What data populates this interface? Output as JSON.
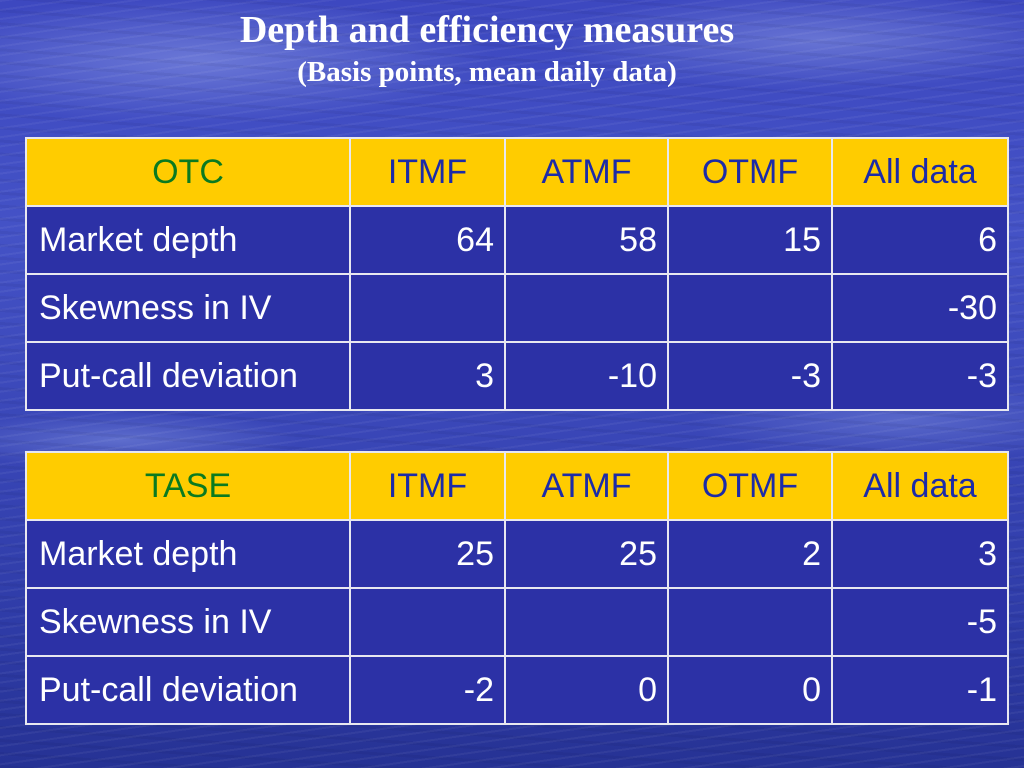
{
  "header": {
    "title": "Depth and efficiency measures",
    "subtitle": "(Basis points, mean daily data)"
  },
  "tables": [
    {
      "name": "OTC",
      "columns": [
        "OTC",
        "ITMF",
        "ATMF",
        "OTMF",
        "All data"
      ],
      "rows": [
        {
          "label": "Market depth",
          "values": [
            "64",
            "58",
            "15",
            "6"
          ]
        },
        {
          "label": "Skewness in IV",
          "values": [
            "",
            "",
            "",
            "-30"
          ]
        },
        {
          "label": "Put-call deviation",
          "values": [
            "3",
            "-10",
            "-3",
            "-3"
          ]
        }
      ]
    },
    {
      "name": "TASE",
      "columns": [
        "TASE",
        "ITMF",
        "ATMF",
        "OTMF",
        "All data"
      ],
      "rows": [
        {
          "label": "Market depth",
          "values": [
            "25",
            "25",
            "2",
            "3"
          ]
        },
        {
          "label": "Skewness in IV",
          "values": [
            "",
            "",
            "",
            "-5"
          ]
        },
        {
          "label": "Put-call deviation",
          "values": [
            "-2",
            "0",
            "0",
            "-1"
          ]
        }
      ]
    }
  ],
  "colors": {
    "header_fill": "#ffcc00",
    "header_text": "#1c2ba8",
    "corner_text": "#0a7a20",
    "cell_fill": "#2c31a6",
    "cell_text": "#ffffff",
    "grid": "#e8e8f0"
  }
}
